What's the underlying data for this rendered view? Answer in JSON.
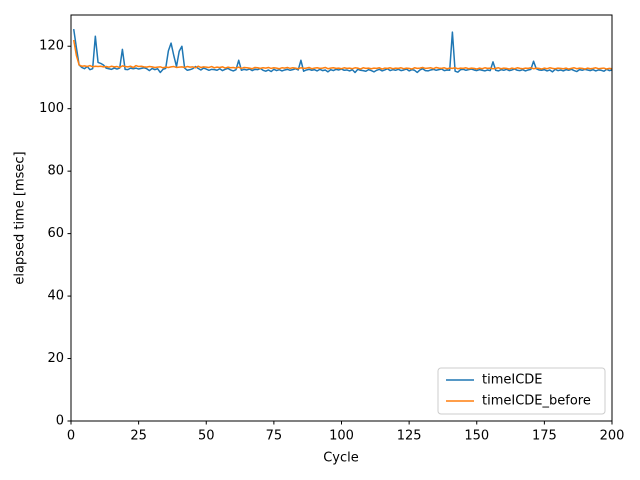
{
  "chart_data": {
    "type": "line",
    "xlabel": "Cycle",
    "ylabel": "elapsed time [msec]",
    "xlim": [
      0,
      200
    ],
    "ylim": [
      0,
      130
    ],
    "xticks": [
      0,
      25,
      50,
      75,
      100,
      125,
      150,
      175,
      200
    ],
    "yticks": [
      0,
      20,
      40,
      60,
      80,
      100,
      120
    ],
    "legend": "lower right",
    "x": [
      1,
      2,
      3,
      4,
      5,
      6,
      7,
      8,
      9,
      10,
      11,
      12,
      13,
      14,
      15,
      16,
      17,
      18,
      19,
      20,
      21,
      22,
      23,
      24,
      25,
      26,
      27,
      28,
      29,
      30,
      31,
      32,
      33,
      34,
      35,
      36,
      37,
      38,
      39,
      40,
      41,
      42,
      43,
      44,
      45,
      46,
      47,
      48,
      49,
      50,
      51,
      52,
      53,
      54,
      55,
      56,
      57,
      58,
      59,
      60,
      61,
      62,
      63,
      64,
      65,
      66,
      67,
      68,
      69,
      70,
      71,
      72,
      73,
      74,
      75,
      76,
      77,
      78,
      79,
      80,
      81,
      82,
      83,
      84,
      85,
      86,
      87,
      88,
      89,
      90,
      91,
      92,
      93,
      94,
      95,
      96,
      97,
      98,
      99,
      100,
      101,
      102,
      103,
      104,
      105,
      106,
      107,
      108,
      109,
      110,
      111,
      112,
      113,
      114,
      115,
      116,
      117,
      118,
      119,
      120,
      121,
      122,
      123,
      124,
      125,
      126,
      127,
      128,
      129,
      130,
      131,
      132,
      133,
      134,
      135,
      136,
      137,
      138,
      139,
      140,
      141,
      142,
      143,
      144,
      145,
      146,
      147,
      148,
      149,
      150,
      151,
      152,
      153,
      154,
      155,
      156,
      157,
      158,
      159,
      160,
      161,
      162,
      163,
      164,
      165,
      166,
      167,
      168,
      169,
      170,
      171,
      172,
      173,
      174,
      175,
      176,
      177,
      178,
      179,
      180,
      181,
      182,
      183,
      184,
      185,
      186,
      187,
      188,
      189,
      190,
      191,
      192,
      193,
      194,
      195,
      196,
      197,
      198,
      199,
      200
    ],
    "series": [
      {
        "name": "timeICDE",
        "color": "#1f77b4",
        "values": [
          125.5,
          119.5,
          114,
          113.2,
          112.8,
          113.5,
          112.5,
          112.8,
          123.2,
          114.8,
          114.5,
          114,
          113,
          112.8,
          112.6,
          113,
          112.7,
          113,
          119,
          112.6,
          112.5,
          113,
          112.8,
          113,
          112.7,
          112.9,
          113.1,
          112.8,
          112.2,
          112.9,
          112.5,
          112.8,
          111.6,
          112.6,
          112.9,
          118.5,
          121,
          117,
          113.5,
          118.4,
          120,
          113,
          112.3,
          112.5,
          112.8,
          113.5,
          112.9,
          112.4,
          113,
          112.7,
          112.3,
          112.6,
          112.5,
          112.3,
          112.8,
          112.2,
          112.6,
          112.9,
          112.4,
          112.1,
          112.5,
          115.5,
          112.3,
          112.6,
          112.4,
          112.7,
          112.2,
          112.6,
          112.5,
          112.9,
          112.3,
          112,
          112.4,
          111.9,
          112.6,
          112.2,
          112.5,
          112.1,
          112.4,
          112.6,
          112.3,
          112.5,
          112.8,
          112.4,
          115.5,
          112,
          112.4,
          112.6,
          112.3,
          112.5,
          112.1,
          112.6,
          112.2,
          112.4,
          111.8,
          112.5,
          112.2,
          112.6,
          112.4,
          112.7,
          112.3,
          112.4,
          112.1,
          112.5,
          111.6,
          112.6,
          112.3,
          112.2,
          112,
          112.5,
          112.2,
          111.8,
          112.3,
          112.6,
          112.1,
          112.4,
          112.8,
          112.2,
          112.5,
          112.3,
          112.6,
          112.2,
          112.4,
          112.7,
          112.1,
          112.5,
          112.3,
          111.6,
          112.4,
          112.8,
          112.2,
          112.1,
          112.4,
          112.6,
          112.3,
          112.5,
          112.7,
          112.2,
          112.4,
          112.3,
          124.5,
          112,
          111.7,
          112.5,
          112.6,
          112.3,
          112.5,
          112.7,
          112.4,
          112.2,
          112.5,
          112.3,
          112.1,
          112.4,
          112.2,
          115,
          112.3,
          112.1,
          112.5,
          112.3,
          112.6,
          112.2,
          112.4,
          112.7,
          112.3,
          112.2,
          112.5,
          112.1,
          112.4,
          112.6,
          115.2,
          112.8,
          112.4,
          112.3,
          112.5,
          112.1,
          112.4,
          111.8,
          112.6,
          112.2,
          112.4,
          112.1,
          112.5,
          112.3,
          112.6,
          112.2,
          111.9,
          112.5,
          112.3,
          112.6,
          112.4,
          112.2,
          112.5,
          112.1,
          112.4,
          112.3,
          112,
          112.6,
          112.2,
          112.4
        ]
      },
      {
        "name": "timeICDE_before",
        "color": "#ff7f0e",
        "values": [
          122,
          117,
          114,
          113.6,
          113.7,
          113.5,
          113.8,
          113.4,
          113.6,
          113.5,
          113.6,
          113.4,
          113.5,
          113.3,
          113.6,
          113.4,
          113.5,
          113.2,
          113.7,
          113.5,
          113.4,
          113.6,
          113.2,
          113.8,
          113.5,
          113.6,
          113.4,
          113.3,
          113.5,
          113.4,
          113.2,
          113.3,
          113.4,
          113.1,
          113.3,
          113.2,
          113.4,
          113.5,
          113.2,
          113.3,
          113.4,
          113.2,
          113.5,
          113.3,
          113.4,
          113.1,
          113.6,
          113.2,
          113.4,
          113.3,
          113.2,
          113.5,
          113.1,
          113.3,
          113.2,
          113.4,
          113,
          113.3,
          113.1,
          113.2,
          113,
          113.3,
          112.9,
          113.2,
          113.1,
          113,
          112.8,
          113.2,
          113.1,
          112.9,
          113.1,
          113,
          113.2,
          112.9,
          113.1,
          113,
          112.8,
          113.1,
          113,
          113.2,
          112.9,
          113.1,
          113,
          112.8,
          113.1,
          112.9,
          113,
          113.2,
          112.8,
          113,
          113.1,
          112.9,
          113,
          113.2,
          112.8,
          113,
          113.1,
          112.9,
          113,
          112.8,
          113.1,
          112.9,
          113,
          112.8,
          113.1,
          113,
          112.7,
          113.1,
          112.9,
          113,
          112.8,
          113,
          112.9,
          113.1,
          112.7,
          113,
          112.9,
          113.1,
          112.8,
          113,
          112.9,
          113.1,
          112.8,
          113,
          112.9,
          112.7,
          113.1,
          112.9,
          113,
          113.2,
          112.9,
          113,
          113.1,
          112.8,
          113.2,
          113,
          112.9,
          113.1,
          112.8,
          113,
          112.9,
          113.1,
          112.8,
          113,
          112.9,
          113.1,
          112.8,
          113,
          112.9,
          112.7,
          113,
          112.8,
          113.1,
          112.9,
          113,
          112.8,
          112.9,
          113.1,
          112.8,
          113,
          112.9,
          112.7,
          113,
          112.8,
          113.1,
          112.9,
          112.8,
          113,
          112.9,
          113.1,
          112.8,
          113,
          112.9,
          112.7,
          113,
          112.8,
          113.1,
          112.9,
          112.8,
          113,
          112.9,
          112.8,
          113,
          112.7,
          112.9,
          113.1,
          112.8,
          113,
          112.9,
          112.7,
          113,
          112.8,
          112.9,
          113.1,
          112.8,
          112.9,
          113,
          112.7,
          112.9,
          112.8
        ]
      }
    ]
  }
}
